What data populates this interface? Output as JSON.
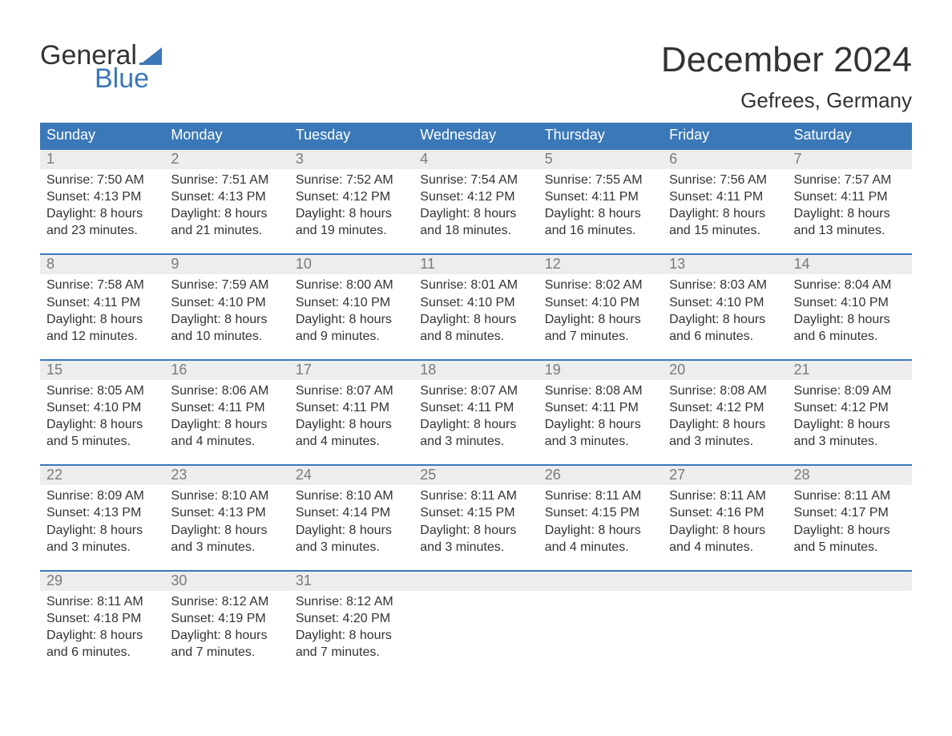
{
  "brand": {
    "line1": "General",
    "line2": "Blue",
    "accent_color": "#3b78b8",
    "text_color": "#333333"
  },
  "title": "December 2024",
  "location": "Gefrees, Germany",
  "colors": {
    "header_bg": "#3b78b8",
    "header_text": "#ffffff",
    "daynum_bg": "#ededed",
    "daynum_text": "#7a7a7a",
    "body_text": "#333333",
    "week_border": "#3b78b8",
    "page_bg": "#ffffff"
  },
  "fonts": {
    "title_size": 44,
    "location_size": 26,
    "weekday_size": 18,
    "daynum_size": 18,
    "body_size": 16
  },
  "weekdays": [
    "Sunday",
    "Monday",
    "Tuesday",
    "Wednesday",
    "Thursday",
    "Friday",
    "Saturday"
  ],
  "weeks": [
    [
      {
        "n": "1",
        "sunrise": "Sunrise: 7:50 AM",
        "sunset": "Sunset: 4:13 PM",
        "d1": "Daylight: 8 hours",
        "d2": "and 23 minutes."
      },
      {
        "n": "2",
        "sunrise": "Sunrise: 7:51 AM",
        "sunset": "Sunset: 4:13 PM",
        "d1": "Daylight: 8 hours",
        "d2": "and 21 minutes."
      },
      {
        "n": "3",
        "sunrise": "Sunrise: 7:52 AM",
        "sunset": "Sunset: 4:12 PM",
        "d1": "Daylight: 8 hours",
        "d2": "and 19 minutes."
      },
      {
        "n": "4",
        "sunrise": "Sunrise: 7:54 AM",
        "sunset": "Sunset: 4:12 PM",
        "d1": "Daylight: 8 hours",
        "d2": "and 18 minutes."
      },
      {
        "n": "5",
        "sunrise": "Sunrise: 7:55 AM",
        "sunset": "Sunset: 4:11 PM",
        "d1": "Daylight: 8 hours",
        "d2": "and 16 minutes."
      },
      {
        "n": "6",
        "sunrise": "Sunrise: 7:56 AM",
        "sunset": "Sunset: 4:11 PM",
        "d1": "Daylight: 8 hours",
        "d2": "and 15 minutes."
      },
      {
        "n": "7",
        "sunrise": "Sunrise: 7:57 AM",
        "sunset": "Sunset: 4:11 PM",
        "d1": "Daylight: 8 hours",
        "d2": "and 13 minutes."
      }
    ],
    [
      {
        "n": "8",
        "sunrise": "Sunrise: 7:58 AM",
        "sunset": "Sunset: 4:11 PM",
        "d1": "Daylight: 8 hours",
        "d2": "and 12 minutes."
      },
      {
        "n": "9",
        "sunrise": "Sunrise: 7:59 AM",
        "sunset": "Sunset: 4:10 PM",
        "d1": "Daylight: 8 hours",
        "d2": "and 10 minutes."
      },
      {
        "n": "10",
        "sunrise": "Sunrise: 8:00 AM",
        "sunset": "Sunset: 4:10 PM",
        "d1": "Daylight: 8 hours",
        "d2": "and 9 minutes."
      },
      {
        "n": "11",
        "sunrise": "Sunrise: 8:01 AM",
        "sunset": "Sunset: 4:10 PM",
        "d1": "Daylight: 8 hours",
        "d2": "and 8 minutes."
      },
      {
        "n": "12",
        "sunrise": "Sunrise: 8:02 AM",
        "sunset": "Sunset: 4:10 PM",
        "d1": "Daylight: 8 hours",
        "d2": "and 7 minutes."
      },
      {
        "n": "13",
        "sunrise": "Sunrise: 8:03 AM",
        "sunset": "Sunset: 4:10 PM",
        "d1": "Daylight: 8 hours",
        "d2": "and 6 minutes."
      },
      {
        "n": "14",
        "sunrise": "Sunrise: 8:04 AM",
        "sunset": "Sunset: 4:10 PM",
        "d1": "Daylight: 8 hours",
        "d2": "and 6 minutes."
      }
    ],
    [
      {
        "n": "15",
        "sunrise": "Sunrise: 8:05 AM",
        "sunset": "Sunset: 4:10 PM",
        "d1": "Daylight: 8 hours",
        "d2": "and 5 minutes."
      },
      {
        "n": "16",
        "sunrise": "Sunrise: 8:06 AM",
        "sunset": "Sunset: 4:11 PM",
        "d1": "Daylight: 8 hours",
        "d2": "and 4 minutes."
      },
      {
        "n": "17",
        "sunrise": "Sunrise: 8:07 AM",
        "sunset": "Sunset: 4:11 PM",
        "d1": "Daylight: 8 hours",
        "d2": "and 4 minutes."
      },
      {
        "n": "18",
        "sunrise": "Sunrise: 8:07 AM",
        "sunset": "Sunset: 4:11 PM",
        "d1": "Daylight: 8 hours",
        "d2": "and 3 minutes."
      },
      {
        "n": "19",
        "sunrise": "Sunrise: 8:08 AM",
        "sunset": "Sunset: 4:11 PM",
        "d1": "Daylight: 8 hours",
        "d2": "and 3 minutes."
      },
      {
        "n": "20",
        "sunrise": "Sunrise: 8:08 AM",
        "sunset": "Sunset: 4:12 PM",
        "d1": "Daylight: 8 hours",
        "d2": "and 3 minutes."
      },
      {
        "n": "21",
        "sunrise": "Sunrise: 8:09 AM",
        "sunset": "Sunset: 4:12 PM",
        "d1": "Daylight: 8 hours",
        "d2": "and 3 minutes."
      }
    ],
    [
      {
        "n": "22",
        "sunrise": "Sunrise: 8:09 AM",
        "sunset": "Sunset: 4:13 PM",
        "d1": "Daylight: 8 hours",
        "d2": "and 3 minutes."
      },
      {
        "n": "23",
        "sunrise": "Sunrise: 8:10 AM",
        "sunset": "Sunset: 4:13 PM",
        "d1": "Daylight: 8 hours",
        "d2": "and 3 minutes."
      },
      {
        "n": "24",
        "sunrise": "Sunrise: 8:10 AM",
        "sunset": "Sunset: 4:14 PM",
        "d1": "Daylight: 8 hours",
        "d2": "and 3 minutes."
      },
      {
        "n": "25",
        "sunrise": "Sunrise: 8:11 AM",
        "sunset": "Sunset: 4:15 PM",
        "d1": "Daylight: 8 hours",
        "d2": "and 3 minutes."
      },
      {
        "n": "26",
        "sunrise": "Sunrise: 8:11 AM",
        "sunset": "Sunset: 4:15 PM",
        "d1": "Daylight: 8 hours",
        "d2": "and 4 minutes."
      },
      {
        "n": "27",
        "sunrise": "Sunrise: 8:11 AM",
        "sunset": "Sunset: 4:16 PM",
        "d1": "Daylight: 8 hours",
        "d2": "and 4 minutes."
      },
      {
        "n": "28",
        "sunrise": "Sunrise: 8:11 AM",
        "sunset": "Sunset: 4:17 PM",
        "d1": "Daylight: 8 hours",
        "d2": "and 5 minutes."
      }
    ],
    [
      {
        "n": "29",
        "sunrise": "Sunrise: 8:11 AM",
        "sunset": "Sunset: 4:18 PM",
        "d1": "Daylight: 8 hours",
        "d2": "and 6 minutes."
      },
      {
        "n": "30",
        "sunrise": "Sunrise: 8:12 AM",
        "sunset": "Sunset: 4:19 PM",
        "d1": "Daylight: 8 hours",
        "d2": "and 7 minutes."
      },
      {
        "n": "31",
        "sunrise": "Sunrise: 8:12 AM",
        "sunset": "Sunset: 4:20 PM",
        "d1": "Daylight: 8 hours",
        "d2": "and 7 minutes."
      },
      {
        "empty": true
      },
      {
        "empty": true
      },
      {
        "empty": true
      },
      {
        "empty": true
      }
    ]
  ]
}
